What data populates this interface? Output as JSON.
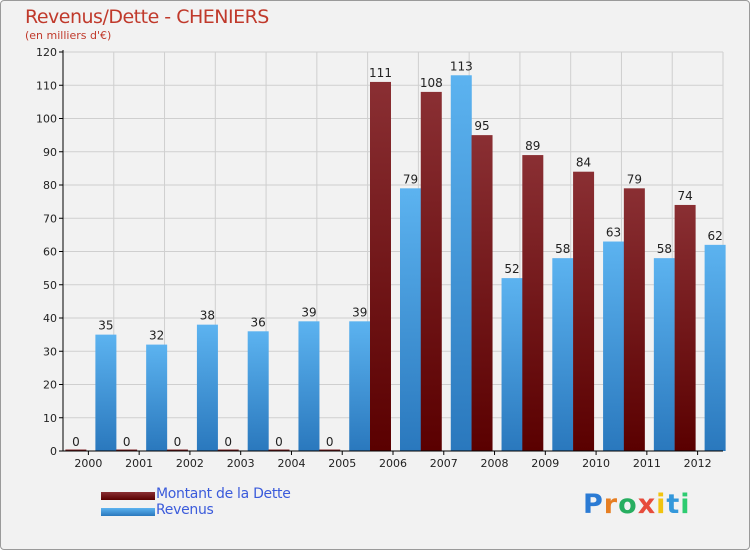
{
  "header": {
    "title": "Revenus/Dette - CHENIERS",
    "subtitle": "(en milliers d'€)"
  },
  "legend": {
    "items": [
      {
        "label": "Montant de la Dette",
        "color": "#6e0f10"
      },
      {
        "label": "Revenus",
        "color": "#4aa3e8"
      }
    ]
  },
  "logo": {
    "text": "Proxiti"
  },
  "colors": {
    "dette_top": "#8a2f33",
    "dette_bottom": "#5a0000",
    "revenus_top": "#5cb3f0",
    "revenus_bottom": "#2a78bd",
    "grid": "#cfcfcf",
    "axis": "#000000",
    "label": "#222222"
  },
  "chart_data": {
    "type": "bar",
    "title": "Revenus/Dette - CHENIERS",
    "subtitle": "(en milliers d'€)",
    "xlabel": "",
    "ylabel": "",
    "ylim": [
      0,
      120
    ],
    "yticks": [
      0,
      10,
      20,
      30,
      40,
      50,
      60,
      70,
      80,
      90,
      100,
      110,
      120
    ],
    "grid": true,
    "legend_position": "bottom-left",
    "categories": [
      "2000",
      "2001",
      "2002",
      "2003",
      "2004",
      "2005",
      "2006",
      "2007",
      "2008",
      "2009",
      "2010",
      "2011",
      "2012"
    ],
    "series": [
      {
        "name": "Montant de la Dette",
        "values": [
          0,
          0,
          0,
          0,
          0,
          0,
          111,
          108,
          95,
          89,
          84,
          79,
          74
        ]
      },
      {
        "name": "Revenus",
        "values": [
          35,
          32,
          38,
          36,
          39,
          39,
          79,
          113,
          52,
          58,
          63,
          58,
          62
        ]
      }
    ]
  }
}
